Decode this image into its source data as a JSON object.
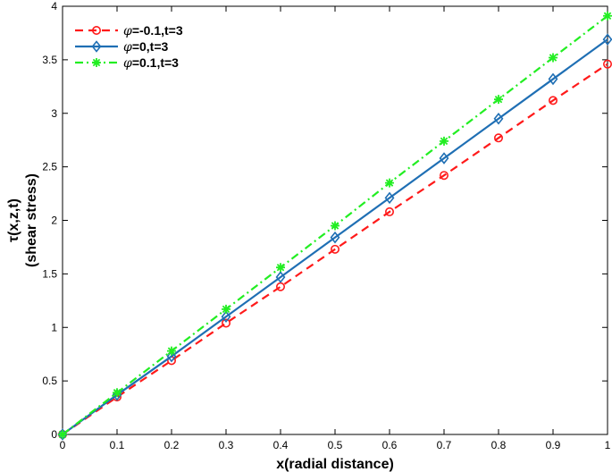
{
  "chart_data": {
    "type": "line",
    "xlabel": "x(radial distance)",
    "ylabel_line1": "τ(x,z,t)",
    "ylabel_line2": "(shear stress)",
    "xlim": [
      0,
      1
    ],
    "ylim": [
      0,
      4
    ],
    "x": [
      0,
      0.1,
      0.2,
      0.3,
      0.4,
      0.5,
      0.6,
      0.7,
      0.8,
      0.9,
      1.0
    ],
    "x_ticks": [
      "0",
      "0.1",
      "0.2",
      "0.3",
      "0.4",
      "0.5",
      "0.6",
      "0.7",
      "0.8",
      "0.9",
      "1"
    ],
    "y_ticks": [
      "0",
      "0.5",
      "1",
      "1.5",
      "2",
      "2.5",
      "3",
      "3.5",
      "4"
    ],
    "grid": false,
    "legend_position": "top-left",
    "series": [
      {
        "name_symbol": "φ",
        "name_rest": "=-0.1,t=3",
        "color": "#ff1a1a",
        "line_style": "dashed",
        "marker": "circle",
        "values": [
          0,
          0.35,
          0.69,
          1.04,
          1.38,
          1.73,
          2.08,
          2.42,
          2.77,
          3.12,
          3.46
        ]
      },
      {
        "name_symbol": "φ",
        "name_rest": "=0,t=3",
        "color": "#1f6fb4",
        "line_style": "solid",
        "marker": "diamond",
        "values": [
          0,
          0.37,
          0.73,
          1.1,
          1.47,
          1.84,
          2.21,
          2.58,
          2.95,
          3.32,
          3.69
        ]
      },
      {
        "name_symbol": "φ",
        "name_rest": "=0.1,t=3",
        "color": "#22ee22",
        "line_style": "dashdot",
        "marker": "asterisk",
        "values": [
          0,
          0.39,
          0.78,
          1.17,
          1.56,
          1.95,
          2.35,
          2.74,
          3.13,
          3.52,
          3.91
        ]
      }
    ]
  }
}
